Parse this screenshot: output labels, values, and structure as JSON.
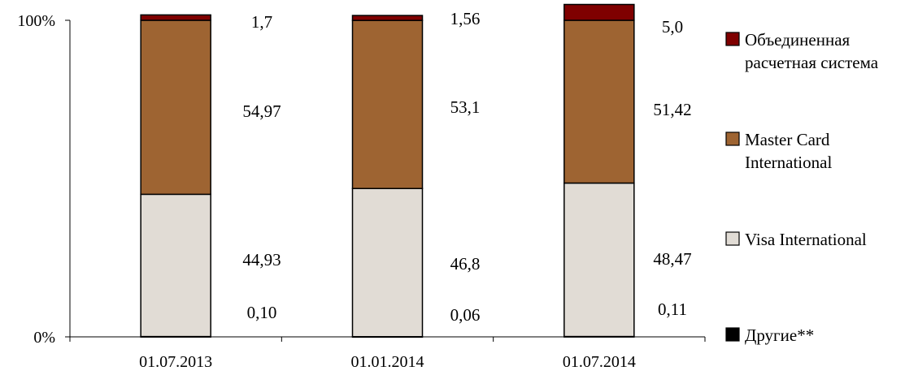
{
  "chart_data": {
    "type": "bar",
    "stacked": true,
    "percent": true,
    "categories": [
      "01.07.2013",
      "01.01.2014",
      "01.07.2014"
    ],
    "series": [
      {
        "name": "Другие**",
        "values": [
          0.1,
          0.06,
          0.11
        ],
        "labels": [
          "0,10",
          "0,06",
          "0,11"
        ],
        "color": "#000000"
      },
      {
        "name": "Visa International",
        "values": [
          44.93,
          46.8,
          48.47
        ],
        "labels": [
          "44,93",
          "46,8",
          "48,47"
        ],
        "color": "#e1dcd5"
      },
      {
        "name": "Master Card International",
        "values": [
          54.97,
          53.1,
          51.42
        ],
        "labels": [
          "54,97",
          "53,1",
          "51,42"
        ],
        "color": "#9e6432"
      },
      {
        "name": "Объединенная расчетная система",
        "values": [
          1.7,
          1.56,
          5.0
        ],
        "labels": [
          "1,7",
          "1,56",
          "5,0"
        ],
        "color": "#7f0000"
      }
    ],
    "ylim": [
      0,
      100
    ],
    "yticks": [
      "0%",
      "100%"
    ],
    "legend_position": "right",
    "legend": [
      {
        "lines": [
          "Объединенная",
          "расчетная система"
        ],
        "color": "#7f0000"
      },
      {
        "lines": [
          "Master Card",
          "International"
        ],
        "color": "#9e6432"
      },
      {
        "lines": [
          "Visa International"
        ],
        "color": "#e1dcd5"
      },
      {
        "lines": [
          "Другие**"
        ],
        "color": "#000000"
      }
    ],
    "grid": false
  }
}
